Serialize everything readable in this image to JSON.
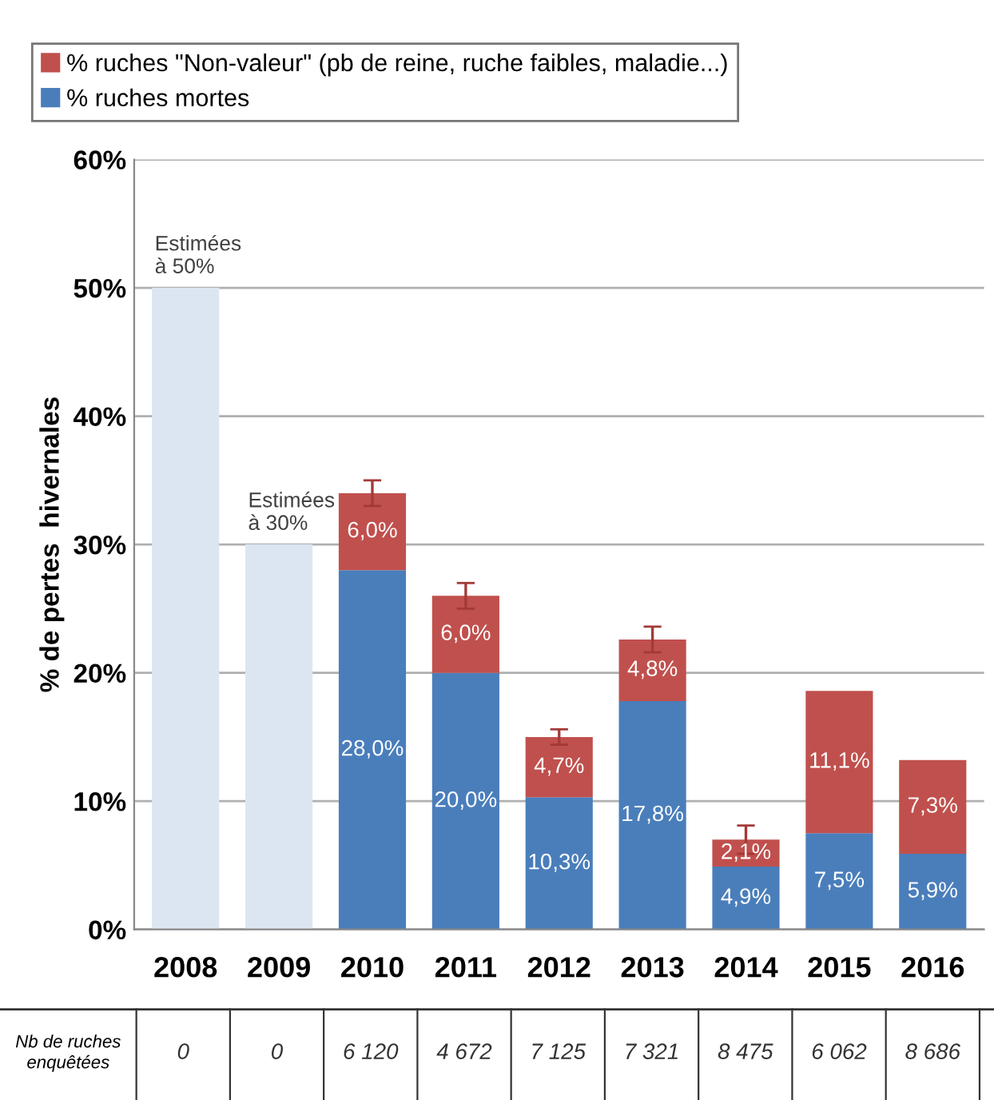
{
  "chart_data": {
    "type": "bar",
    "stacked": true,
    "ylabel": "% de pertes  hivernales",
    "categories": [
      "2008",
      "2009",
      "2010",
      "2011",
      "2012",
      "2013",
      "2014",
      "2015",
      "2016"
    ],
    "series": [
      {
        "name": "% ruches mortes",
        "color": "#4a7ebb",
        "values": [
          null,
          null,
          28.0,
          20.0,
          10.3,
          17.8,
          4.9,
          7.5,
          5.9
        ],
        "value_labels": [
          null,
          null,
          "28,0%",
          "20,0%",
          "10,3%",
          "17,8%",
          "4,9%",
          "7,5%",
          "5,9%"
        ]
      },
      {
        "name": "% ruches \"Non-valeur\" (pb de reine, ruche faibles, maladie...)",
        "color": "#c0504d",
        "values": [
          null,
          null,
          6.0,
          6.0,
          4.7,
          4.8,
          2.1,
          11.1,
          7.3
        ],
        "value_labels": [
          null,
          null,
          "6,0%",
          "6,0%",
          "4,7%",
          "4,8%",
          "2,1%",
          "11,1%",
          "7,3%"
        ],
        "errors": [
          null,
          null,
          1.0,
          1.0,
          0.6,
          1.0,
          1.1,
          null,
          null
        ]
      },
      {
        "color": "#dce6f2",
        "values": [
          50,
          30,
          null,
          null,
          null,
          null,
          null,
          null,
          null
        ]
      }
    ],
    "ylim": [
      0,
      60
    ],
    "yticks": [
      {
        "value": 0,
        "label": "0%"
      },
      {
        "value": 10,
        "label": "10%"
      },
      {
        "value": 20,
        "label": "20%"
      },
      {
        "value": 30,
        "label": "30%"
      },
      {
        "value": 40,
        "label": "40%"
      },
      {
        "value": 50,
        "label": "50%"
      },
      {
        "value": 60,
        "label": "60%"
      }
    ],
    "grid": "y",
    "legend": "top",
    "annotations": [
      {
        "text": "Estimées\nà 50%",
        "x": "2008",
        "y": 50
      },
      {
        "text": "Estimées\nà 30%",
        "x": "2009",
        "y": 30
      },
      "Nb de ruches enquêtées",
      "0",
      "0",
      "6 120",
      "4 672",
      "7 125",
      "7 321",
      "8 475",
      "6 062",
      "8 686"
    ]
  }
}
